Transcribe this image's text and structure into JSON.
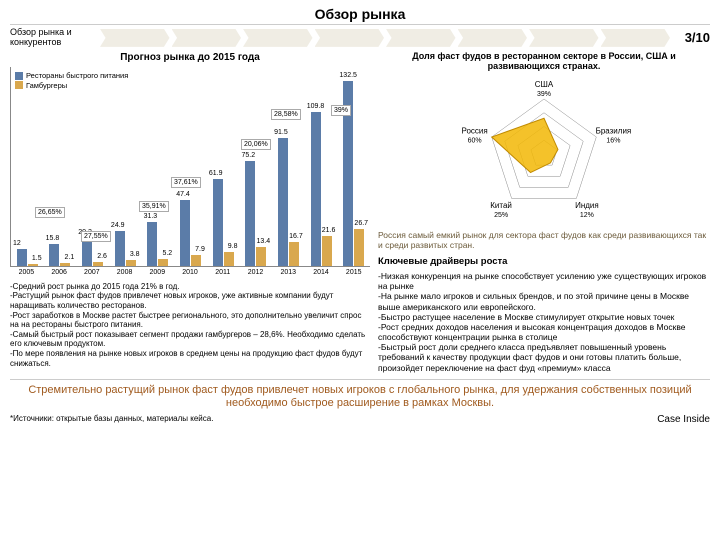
{
  "header": {
    "title": "Обзор рынка",
    "subtitle": "Обзор рынка и конкурентов",
    "page": "3/10"
  },
  "left": {
    "title": "Прогноз рынка до 2015 года",
    "legend": {
      "a": "Рестораны быстрого питания",
      "b": "Гамбургеры"
    },
    "colors": {
      "a": "#5b7ca8",
      "b": "#d9a84e"
    },
    "years": [
      "2005",
      "2006",
      "2007",
      "2008",
      "2009",
      "2010",
      "2011",
      "2012",
      "2013",
      "2014",
      "2015"
    ],
    "series_a": [
      12,
      15.8,
      20.2,
      24.9,
      31.3,
      47.4,
      61.9,
      75.2,
      91.5,
      109.8,
      132.5
    ],
    "series_b": [
      1.5,
      2.1,
      2.6,
      3.8,
      5.2,
      7.9,
      9.8,
      13.4,
      16.7,
      21.6,
      26.7
    ],
    "growths": [
      "26,65%",
      "27,55%",
      "35,91%",
      "37,61%",
      "20,06%",
      "28,58%",
      "39%"
    ],
    "growth_pos": [
      {
        "l": 24,
        "t": 140
      },
      {
        "l": 70,
        "t": 164
      },
      {
        "l": 128,
        "t": 134
      },
      {
        "l": 160,
        "t": 110
      },
      {
        "l": 230,
        "t": 72
      },
      {
        "l": 260,
        "t": 42
      },
      {
        "l": 320,
        "t": 38
      }
    ],
    "bullets": "-Средний рост рынка до 2015 года 21% в год.\n-Растущий рынок фаст фудов привлечет новых игроков, уже активные компании будут наращивать количество ресторанов.\n-Рост заработков в Москве растет быстрее регионального, это дополнительно увеличит спрос на на рестораны быстрого питания.\n-Самый быстрый рост показывает сегмент продажи гамбургеров – 28,6%. Необходимо сделать его ключевым продуктом.\n-По мере появления на рынке новых игроков в среднем цены на продукцию фаст фудов будут снижаться."
  },
  "right": {
    "title": "Доля фаст фудов в ресторанном секторе в России, США и развивающихся странах.",
    "radar": {
      "axes": [
        "США",
        "Бразилия",
        "Индия",
        "Китай",
        "Россия"
      ],
      "pcts": [
        "39%",
        "16%",
        "12%",
        "25%",
        "60%"
      ],
      "fill": "#f2b705",
      "line": "#8a8a8a"
    },
    "em_text": "Россия самый емкий рынок для сектора фаст фудов как среди развивающихся так и среди развитых стран.",
    "drivers_h": "Ключевые драйверы роста",
    "drivers": "-Низкая конкуренция на рынке способствует усилению уже существующих игроков на рынке\n-На рынке мало игроков и сильных брендов, и по этой причине цены в Москве выше американского или европейского.\n-Быстро растущее население в Москве стимулирует открытие новых точек\n-Рост средних доходов населения и высокая концентрация доходов в Москве способствуют концентрации рынка в столице\n-Быстрый рост доли среднего класса предъявляет повышенный уровень требований к качеству продукции фаст фудов и они готовы платить больше, произойдет переключение на фаст фуд «премиум» класса"
  },
  "conclusion": "Стремительно растущий рынок фаст фудов привлечет новых игроков с глобального рынка, для удержания собственных позиций необходимо быстрое расширение в рамках Москвы.",
  "footer": {
    "left": "*Источники: открытые базы данных, материалы кейса.",
    "right": "Case Inside"
  }
}
